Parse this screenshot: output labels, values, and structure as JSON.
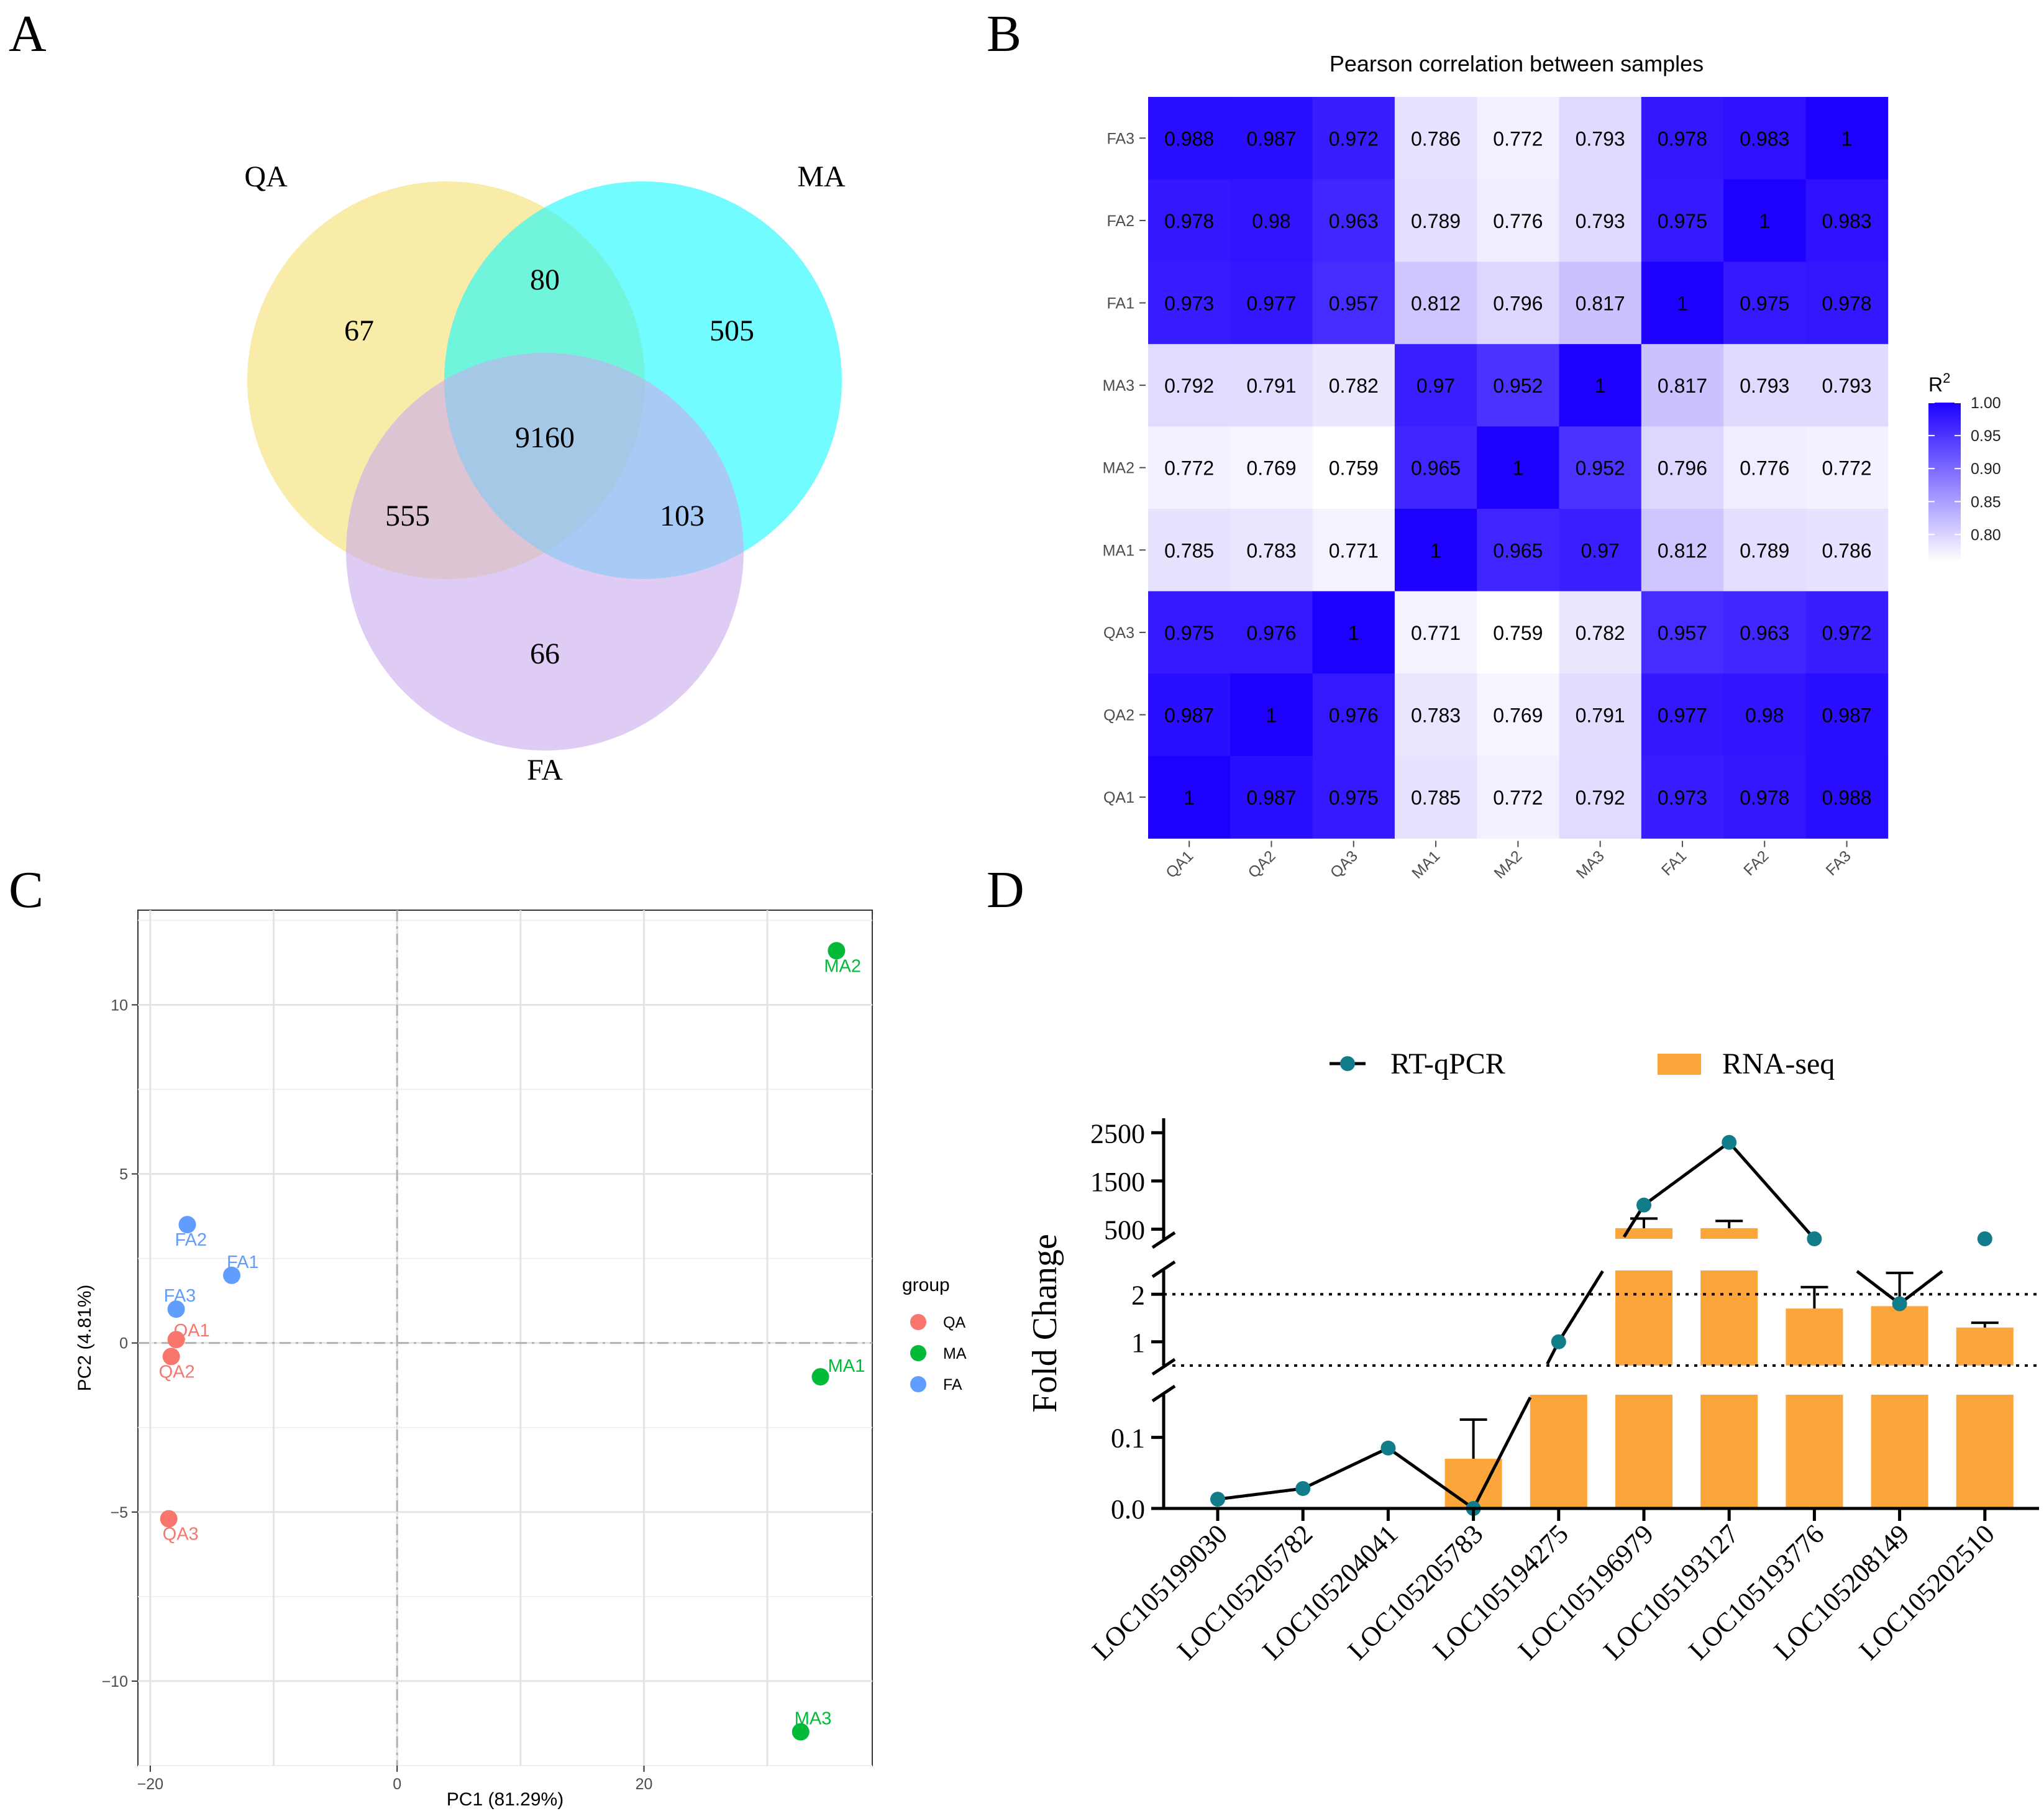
{
  "panels": {
    "A": {
      "label": "A"
    },
    "B": {
      "label": "B"
    },
    "C": {
      "label": "C"
    },
    "D": {
      "label": "D"
    }
  },
  "chart_data": [
    {
      "id": "venn",
      "type": "venn",
      "sets": [
        {
          "name": "QA",
          "color": "#F5DD6E"
        },
        {
          "name": "MA",
          "color": "#16FAFF"
        },
        {
          "name": "FA",
          "color": "#CAAAEF"
        }
      ],
      "regions": [
        {
          "key": "QA_only",
          "sets": [
            "QA"
          ],
          "value": "67"
        },
        {
          "key": "MA_only",
          "sets": [
            "MA"
          ],
          "value": "505"
        },
        {
          "key": "FA_only",
          "sets": [
            "FA"
          ],
          "value": "66"
        },
        {
          "key": "QA_MA",
          "sets": [
            "QA",
            "MA"
          ],
          "value": "80"
        },
        {
          "key": "QA_FA",
          "sets": [
            "QA",
            "FA"
          ],
          "value": "555"
        },
        {
          "key": "MA_FA",
          "sets": [
            "MA",
            "FA"
          ],
          "value": "103"
        },
        {
          "key": "all",
          "sets": [
            "QA",
            "MA",
            "FA"
          ],
          "value": "9160"
        }
      ]
    },
    {
      "id": "heatmap",
      "type": "heatmap",
      "title": "Pearson correlation between samples",
      "x_labels": [
        "QA1",
        "QA2",
        "QA3",
        "MA1",
        "MA2",
        "MA3",
        "FA1",
        "FA2",
        "FA3"
      ],
      "y_labels_top_to_bottom": [
        "FA3",
        "FA2",
        "FA1",
        "MA3",
        "MA2",
        "MA1",
        "QA3",
        "QA2",
        "QA1"
      ],
      "cells": [
        [
          "0.988",
          "0.987",
          "0.972",
          "0.786",
          "0.772",
          "0.793",
          "0.978",
          "0.983",
          "1"
        ],
        [
          "0.978",
          "0.98",
          "0.963",
          "0.789",
          "0.776",
          "0.793",
          "0.975",
          "1",
          "0.983"
        ],
        [
          "0.973",
          "0.977",
          "0.957",
          "0.812",
          "0.796",
          "0.817",
          "1",
          "0.975",
          "0.978"
        ],
        [
          "0.792",
          "0.791",
          "0.782",
          "0.97",
          "0.952",
          "1",
          "0.817",
          "0.793",
          "0.793"
        ],
        [
          "0.772",
          "0.769",
          "0.759",
          "0.965",
          "1",
          "0.952",
          "0.796",
          "0.776",
          "0.772"
        ],
        [
          "0.785",
          "0.783",
          "0.771",
          "1",
          "0.965",
          "0.97",
          "0.812",
          "0.789",
          "0.786"
        ],
        [
          "0.975",
          "0.976",
          "1",
          "0.771",
          "0.759",
          "0.782",
          "0.957",
          "0.963",
          "0.972"
        ],
        [
          "0.987",
          "1",
          "0.976",
          "0.783",
          "0.769",
          "0.791",
          "0.977",
          "0.98",
          "0.987"
        ],
        [
          "1",
          "0.987",
          "0.975",
          "0.785",
          "0.772",
          "0.792",
          "0.973",
          "0.978",
          "0.988"
        ]
      ],
      "color_range": [
        0.759,
        1.0
      ],
      "colors": {
        "low": "#FFFFFF",
        "high": "#1E00FF"
      },
      "legend": {
        "title_main": "R",
        "title_sup": "2",
        "ticks": [
          {
            "value": 1.0,
            "label": "1.00"
          },
          {
            "value": 0.95,
            "label": "0.95"
          },
          {
            "value": 0.9,
            "label": "0.90"
          },
          {
            "value": 0.85,
            "label": "0.85"
          },
          {
            "value": 0.8,
            "label": "0.80"
          }
        ]
      }
    },
    {
      "id": "pca",
      "type": "scatter",
      "xlabel": "PC1 (81.29%)",
      "ylabel": "PC2 (4.81%)",
      "xlim": [
        -21,
        38.5
      ],
      "ylim": [
        -12.5,
        12.8
      ],
      "x_ticks": [
        {
          "value": -20,
          "label": "−20"
        },
        {
          "value": 0,
          "label": "0"
        },
        {
          "value": 20,
          "label": "20"
        }
      ],
      "y_ticks": [
        {
          "value": 10,
          "label": "10"
        },
        {
          "value": 5,
          "label": "5"
        },
        {
          "value": 0,
          "label": "0"
        },
        {
          "value": -5,
          "label": "−5"
        },
        {
          "value": -10,
          "label": "−10"
        }
      ],
      "reference_lines": {
        "x": 0,
        "y": 0
      },
      "legend": {
        "title": "group",
        "entries": [
          {
            "name": "QA",
            "color": "#F8766D"
          },
          {
            "name": "MA",
            "color": "#00BA38"
          },
          {
            "name": "FA",
            "color": "#619CFF"
          }
        ]
      },
      "points": [
        {
          "label": "QA1",
          "group": "QA",
          "x": -17.9,
          "y": 0.1
        },
        {
          "label": "QA2",
          "group": "QA",
          "x": -18.3,
          "y": -0.4
        },
        {
          "label": "QA3",
          "group": "QA",
          "x": -18.5,
          "y": -5.2
        },
        {
          "label": "MA1",
          "group": "MA",
          "x": 34.3,
          "y": -1.0
        },
        {
          "label": "MA2",
          "group": "MA",
          "x": 35.6,
          "y": 11.6
        },
        {
          "label": "MA3",
          "group": "MA",
          "x": 32.7,
          "y": -11.5
        },
        {
          "label": "FA1",
          "group": "FA",
          "x": -13.4,
          "y": 2.0
        },
        {
          "label": "FA2",
          "group": "FA",
          "x": -17.0,
          "y": 3.5
        },
        {
          "label": "FA3",
          "group": "FA",
          "x": -17.9,
          "y": 1.0
        }
      ]
    },
    {
      "id": "qpcr",
      "type": "bar",
      "ylabel": "Fold Change",
      "y_axis": "broken (three segments)",
      "y_ticks": [
        {
          "value": 2500,
          "label": "2500"
        },
        {
          "value": 1500,
          "label": "1500"
        },
        {
          "value": 500,
          "label": "500"
        },
        {
          "value": 2,
          "label": "2"
        },
        {
          "value": 1,
          "label": "1"
        },
        {
          "value": 0.1,
          "label": "0.1"
        },
        {
          "value": 0.0,
          "label": "0.0"
        }
      ],
      "reference_lines": [
        2,
        0.5
      ],
      "categories": [
        "LOC105199030",
        "LOC105205782",
        "LOC105204041",
        "LOC105205783",
        "LOC105194275",
        "LOC105196979",
        "LOC105193127",
        "LOC105193776",
        "LOC105208149",
        "LOC105202510"
      ],
      "series": [
        {
          "name": "RT-qPCR",
          "kind": "line",
          "color": "#127D8A",
          "values": [
            0.013,
            0.028,
            0.085,
            0.0,
            1.0,
            1000,
            2300,
            300,
            1.8,
            300
          ]
        },
        {
          "name": "RNA-seq",
          "kind": "bar",
          "color": "#FBA53B",
          "values": [
            0.002,
            0.001,
            0.001,
            0.07,
            0.5,
            520,
            520,
            1.7,
            1.75,
            1.3
          ],
          "error": [
            0.0,
            0.0,
            0.0,
            0.055,
            0.0,
            200,
            150,
            0.45,
            0.7,
            0.1
          ]
        }
      ]
    }
  ]
}
